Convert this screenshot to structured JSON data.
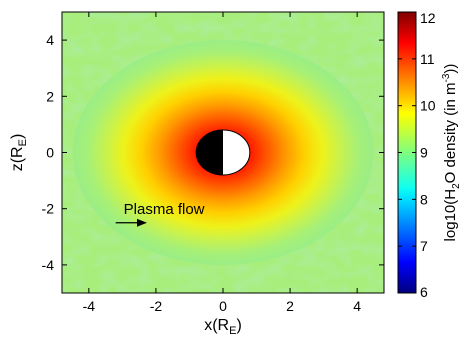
{
  "chart_data": {
    "type": "heatmap",
    "xlabel_main": "x(R",
    "xlabel_sub": "E",
    "xlabel_close": ")",
    "ylabel_main": "z(R",
    "ylabel_sub": "E",
    "ylabel_close": ")",
    "xlim": [
      -4.8,
      4.8
    ],
    "ylim": [
      -5,
      5
    ],
    "xticks": [
      -4,
      -2,
      0,
      2,
      4
    ],
    "yticks": [
      -4,
      -2,
      0,
      2,
      4
    ],
    "xtick_labels": [
      "-4",
      "-2",
      "0",
      "2",
      "4"
    ],
    "ytick_labels": [
      "-4",
      "-2",
      "0",
      "2",
      "4"
    ],
    "colorbar": {
      "range": [
        6,
        12
      ],
      "ticks": [
        6,
        7,
        8,
        9,
        10,
        11,
        12
      ],
      "tick_labels": [
        "6",
        "7",
        "8",
        "9",
        "10",
        "11",
        "12"
      ],
      "label_parts": [
        "log10(H",
        "2",
        "O density (in m",
        "-3",
        "))"
      ],
      "colormap": "jet"
    },
    "field": {
      "description_values": "density decreases radially from ~11.5 near the body to ~9 at edges",
      "center": [
        0,
        0
      ],
      "body_radius": 0.8,
      "peak_value": 11.6,
      "background_value": 8.9
    },
    "body": {
      "center": [
        0,
        0
      ],
      "radius": 0.8,
      "night_side": "left",
      "night_color": "#000000",
      "day_color": "#ffffff"
    },
    "annotation": {
      "text": "Plasma flow",
      "arrow_from": [
        -3.2,
        -2.5
      ],
      "arrow_to": [
        -2.3,
        -2.5
      ]
    }
  }
}
